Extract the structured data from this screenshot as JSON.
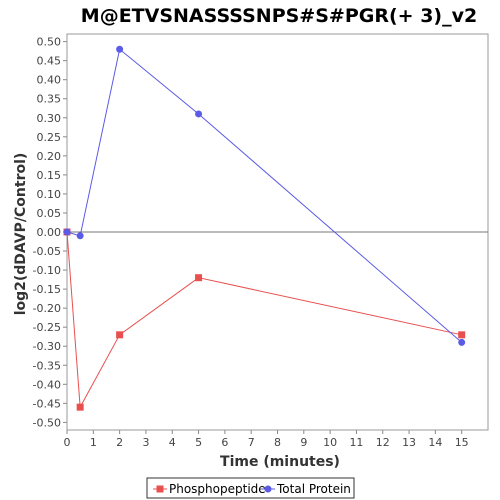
{
  "chart_data": {
    "type": "line",
    "title": "M@ETVSNASSSSNPS#S#PGR(+ 3)_v2",
    "xlabel": "Time (minutes)",
    "ylabel": "log2(dDAVP/Control)",
    "xlim": [
      0,
      16
    ],
    "ylim": [
      -0.52,
      0.52
    ],
    "xticks": [
      0,
      1,
      2,
      3,
      4,
      5,
      6,
      7,
      8,
      9,
      10,
      11,
      12,
      13,
      14,
      15
    ],
    "yticks": [
      -0.5,
      -0.45,
      -0.4,
      -0.35,
      -0.3,
      -0.25,
      -0.2,
      -0.15,
      -0.1,
      -0.05,
      0.0,
      0.05,
      0.1,
      0.15,
      0.2,
      0.25,
      0.3,
      0.35,
      0.4,
      0.45,
      0.5
    ],
    "xtick_labels": [
      "0",
      "1",
      "2",
      "3",
      "4",
      "5",
      "6",
      "7",
      "8",
      "9",
      "10",
      "11",
      "12",
      "13",
      "14",
      "15"
    ],
    "ytick_labels": [
      "-0.50",
      "-0.45",
      "-0.40",
      "-0.35",
      "-0.30",
      "-0.25",
      "-0.20",
      "-0.15",
      "-0.10",
      "-0.05",
      "0.00",
      "0.05",
      "0.10",
      "0.15",
      "0.20",
      "0.25",
      "0.30",
      "0.35",
      "0.40",
      "0.45",
      "0.50"
    ],
    "zero_line": true,
    "legend_position": "bottom",
    "series": [
      {
        "name": "Phosphopeptide",
        "color": "#e8504f",
        "marker": "square",
        "x": [
          0,
          0.5,
          2,
          5,
          15
        ],
        "y": [
          0.0,
          -0.46,
          -0.27,
          -0.12,
          -0.27
        ]
      },
      {
        "name": "Total Protein",
        "color": "#5b5be6",
        "marker": "circle",
        "x": [
          0,
          0.5,
          2,
          5,
          15
        ],
        "y": [
          0.0,
          -0.01,
          0.48,
          0.31,
          -0.29
        ]
      }
    ]
  }
}
